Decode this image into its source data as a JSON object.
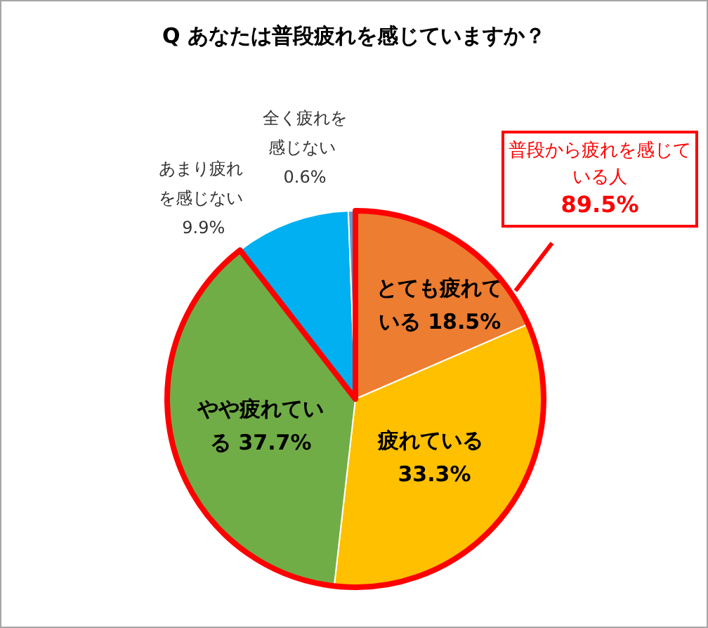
{
  "chart_data": {
    "type": "pie",
    "title": "Q あなたは普段疲れを感じていますか？",
    "categories": [
      "とても疲れている",
      "疲れている",
      "やや疲れている",
      "あまり疲れを感じない",
      "全く疲れを感じない"
    ],
    "values": [
      18.5,
      33.3,
      37.7,
      9.9,
      0.6
    ],
    "colors": [
      "#ed7d31",
      "#ffc000",
      "#70ad47",
      "#00b0f0",
      "#5b9bd5"
    ],
    "value_labels": [
      "18.5%",
      "33.3%",
      "37.7%",
      "9.9%",
      "0.6%"
    ],
    "annotations": [
      "普段から疲れを感じている人 89.5%"
    ]
  }
}
